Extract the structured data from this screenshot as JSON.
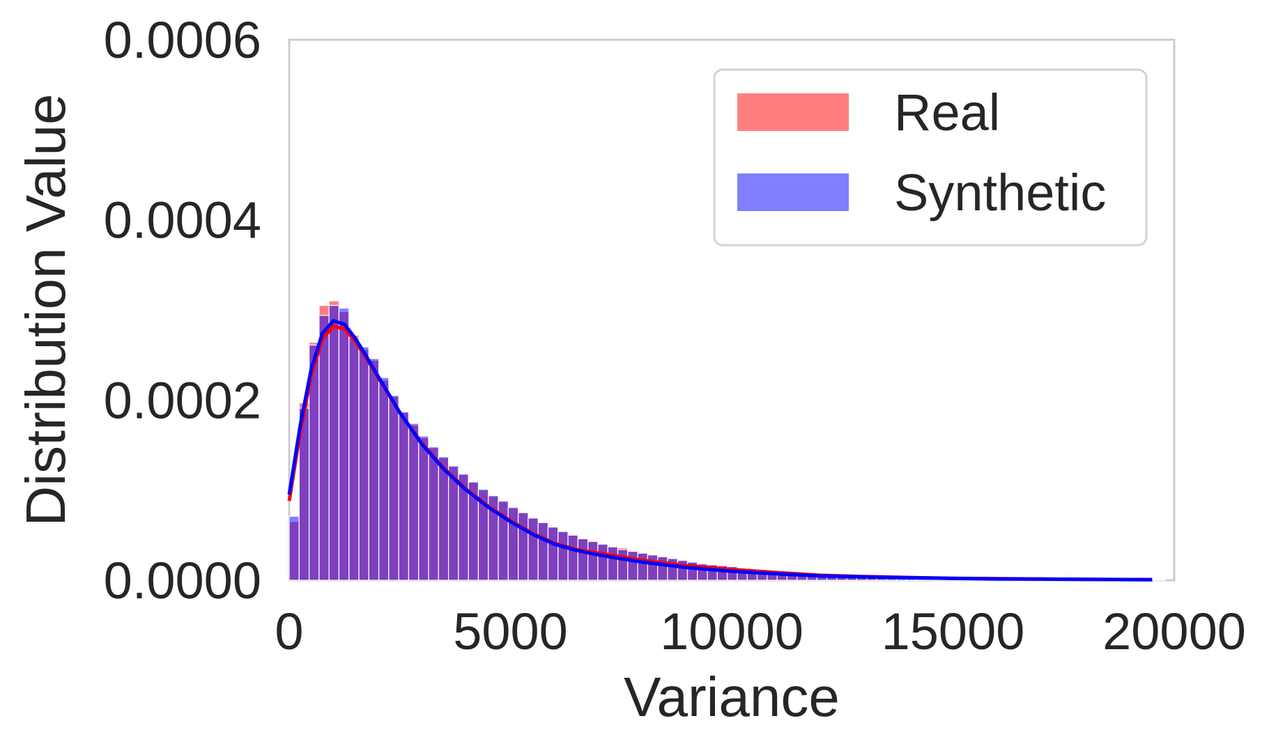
{
  "chart_data": {
    "type": "bar",
    "subtype": "overlaid histogram with KDE curves",
    "title": "",
    "xlabel": "Variance",
    "ylabel": "Distribution Value",
    "xlim": [
      0,
      20000
    ],
    "ylim": [
      0,
      0.0006
    ],
    "x_ticks": [
      "0",
      "5000",
      "10000",
      "15000",
      "20000"
    ],
    "y_ticks": [
      "0.0000",
      "0.0002",
      "0.0004",
      "0.0006"
    ],
    "grid": false,
    "legend_position": "top-right",
    "bin_edges_start": 0,
    "bin_width": 225,
    "series": [
      {
        "name": "Real",
        "color": "#ff0000",
        "hist_values": [
          6.5e-05,
          0.000197,
          0.000264,
          0.000305,
          0.00031,
          0.000298,
          0.000272,
          0.000256,
          0.000244,
          0.000222,
          0.000204,
          0.000186,
          0.000172,
          0.000158,
          0.000147,
          0.000136,
          0.000126,
          0.000117,
          0.000109,
          0.0001,
          9.3e-05,
          8.7e-05,
          8e-05,
          7.5e-05,
          6.9e-05,
          6.4e-05,
          5.9e-05,
          5.5e-05,
          5.1e-05,
          4.7e-05,
          4.4e-05,
          4.1e-05,
          3.8e-05,
          3.6e-05,
          3.3e-05,
          3.1e-05,
          2.9e-05,
          2.7e-05,
          2.5e-05,
          2.3e-05,
          2.1e-05,
          1.9e-05,
          1.8e-05,
          1.7e-05,
          1.6e-05,
          1.4e-05,
          1.3e-05,
          1.2e-05,
          1.1e-05,
          1e-05,
          9.5e-06,
          8.8e-06,
          8e-06,
          7.2e-06,
          6.5e-06,
          5.8e-06,
          5.2e-06,
          4.7e-06,
          4.3e-06,
          3.9e-06,
          3.6e-06,
          3.3e-06,
          3e-06,
          2.8e-06,
          2.6e-06,
          2.4e-06,
          2.2e-06,
          2e-06,
          1.8e-06,
          1.7e-06,
          1.6e-06,
          1.5e-06,
          1.4e-06,
          1.3e-06,
          1.2e-06,
          1.1e-06,
          1e-06,
          1e-06,
          9e-07,
          9e-07,
          8e-07,
          8e-07,
          7e-07,
          7e-07,
          6e-07,
          6e-07,
          6e-07,
          5e-07
        ],
        "kde_x": [
          0,
          250,
          500,
          750,
          1000,
          1250,
          1500,
          1750,
          2000,
          2500,
          3000,
          3500,
          4000,
          4500,
          5000,
          5500,
          6000,
          6500,
          7000,
          7500,
          8000,
          9000,
          10000,
          11000,
          12000,
          13000,
          14000,
          15000,
          16000,
          17000,
          18000,
          19000,
          19500
        ],
        "kde_y": [
          8.8e-05,
          0.000165,
          0.000228,
          0.000268,
          0.000282,
          0.000279,
          0.000265,
          0.000246,
          0.000226,
          0.000186,
          0.000152,
          0.000124,
          0.000101,
          8.2e-05,
          6.6e-05,
          5.2e-05,
          4.1e-05,
          3.4e-05,
          3e-05,
          2.6e-05,
          2.2e-05,
          1.6e-05,
          1.2e-05,
          8.5e-06,
          5.5e-06,
          4e-06,
          3e-06,
          2.2e-06,
          1.7e-06,
          1.3e-06,
          1e-06,
          8e-07,
          7e-07
        ]
      },
      {
        "name": "Synthetic",
        "color": "#0000ff",
        "hist_values": [
          7.1e-05,
          0.000191,
          0.000261,
          0.000294,
          0.000305,
          0.000302,
          0.000269,
          0.000259,
          0.000246,
          0.000225,
          0.000205,
          0.000187,
          0.000174,
          0.00016,
          0.000148,
          0.000137,
          0.000127,
          0.000118,
          0.000109,
          0.000101,
          9.4e-05,
          8.8e-05,
          8.1e-05,
          7.5e-05,
          6.9e-05,
          6.4e-05,
          5.9e-05,
          5.4e-05,
          5e-05,
          4.6e-05,
          4.3e-05,
          4e-05,
          3.7e-05,
          3.4e-05,
          3.2e-05,
          3e-05,
          2.8e-05,
          2.6e-05,
          2.4e-05,
          2.2e-05,
          2e-05,
          1.8e-05,
          1.7e-05,
          1.6e-05,
          1.5e-05,
          1.3e-05,
          1.2e-05,
          1.1e-05,
          1e-05,
          9.2e-06,
          8.4e-06,
          7.6e-06,
          6.8e-06,
          6.1e-06,
          5.4e-06,
          4.8e-06,
          4.3e-06,
          3.9e-06,
          3.5e-06,
          3.2e-06,
          2.9e-06,
          2.7e-06,
          2.5e-06,
          2.3e-06,
          2.1e-06,
          1.9e-06,
          1.8e-06,
          1.7e-06,
          1.6e-06,
          1.5e-06,
          1.4e-06,
          1.3e-06,
          1.2e-06,
          1.1e-06,
          1e-06,
          1e-06,
          9e-07,
          9e-07,
          8e-07,
          8e-07,
          7e-07,
          7e-07,
          6e-07,
          6e-07,
          6e-07,
          5e-07,
          5e-07,
          5e-07
        ],
        "kde_x": [
          0,
          250,
          500,
          750,
          1000,
          1250,
          1500,
          1750,
          2000,
          2500,
          3000,
          3500,
          4000,
          4500,
          5000,
          5500,
          6000,
          6500,
          7000,
          7500,
          8000,
          9000,
          10000,
          11000,
          12000,
          13000,
          14000,
          15000,
          16000,
          17000,
          18000,
          19000,
          19500
        ],
        "kde_y": [
          9.5e-05,
          0.000172,
          0.000235,
          0.000274,
          0.000288,
          0.000284,
          0.000268,
          0.000248,
          0.000227,
          0.000186,
          0.000151,
          0.000123,
          0.0001,
          8.1e-05,
          6.5e-05,
          5.1e-05,
          4e-05,
          3.3e-05,
          2.8e-05,
          2.4e-05,
          2e-05,
          1.4e-05,
          1e-05,
          7.2e-06,
          4.8e-06,
          3.8e-06,
          2.8e-06,
          2e-06,
          1.5e-06,
          1.2e-06,
          9e-07,
          7e-07,
          6e-07
        ]
      }
    ]
  }
}
